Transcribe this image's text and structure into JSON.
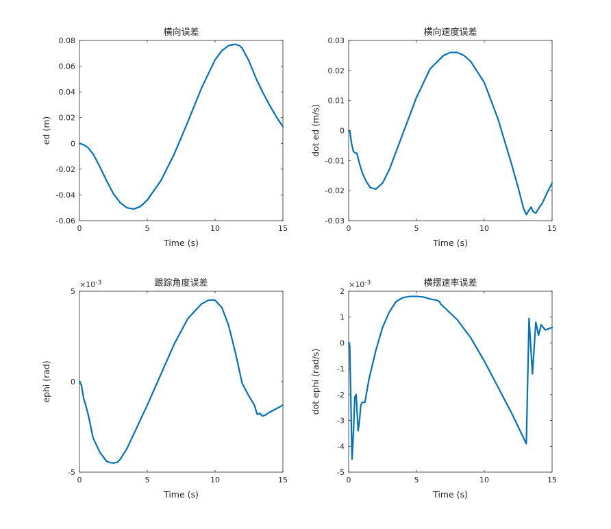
{
  "chart_data": [
    {
      "type": "line",
      "title": "横向误差",
      "xlabel": "Time (s)",
      "ylabel": "ed (m)",
      "xlim": [
        0,
        15
      ],
      "ylim": [
        -0.06,
        0.08
      ],
      "xticks": [
        0,
        5,
        10,
        15
      ],
      "xtick_labels": [
        "0",
        "5",
        "10",
        "15"
      ],
      "yticks": [
        -0.06,
        -0.04,
        -0.02,
        0,
        0.02,
        0.04,
        0.06,
        0.08
      ],
      "ytick_labels": [
        "-0.06",
        "-0.04",
        "-0.02",
        "0",
        "0.02",
        "0.04",
        "0.06",
        "0.08"
      ],
      "exponent": "",
      "grid": false,
      "color": "#0072BD",
      "x": [
        0,
        0.3,
        0.6,
        1.0,
        1.5,
        2.0,
        2.5,
        3.0,
        3.5,
        4.0,
        4.5,
        5.0,
        6.0,
        7.0,
        8.0,
        9.0,
        10.0,
        10.5,
        11.0,
        11.5,
        11.8,
        12.0,
        12.5,
        13.0,
        13.5,
        14.0,
        14.5,
        15.0
      ],
      "y": [
        0,
        -0.001,
        -0.003,
        -0.008,
        -0.018,
        -0.029,
        -0.039,
        -0.046,
        -0.05,
        -0.051,
        -0.049,
        -0.044,
        -0.029,
        -0.008,
        0.017,
        0.043,
        0.065,
        0.072,
        0.076,
        0.077,
        0.076,
        0.074,
        0.064,
        0.051,
        0.04,
        0.03,
        0.021,
        0.013
      ]
    },
    {
      "type": "line",
      "title": "横向速度误差",
      "xlabel": "Time (s)",
      "ylabel": "dot ed (m/s)",
      "xlim": [
        0,
        15
      ],
      "ylim": [
        -0.03,
        0.03
      ],
      "xticks": [
        0,
        5,
        10,
        15
      ],
      "xtick_labels": [
        "0",
        "5",
        "10",
        "15"
      ],
      "yticks": [
        -0.03,
        -0.02,
        -0.01,
        0,
        0.01,
        0.02,
        0.03
      ],
      "ytick_labels": [
        "-0.03",
        "-0.02",
        "-0.01",
        "0",
        "0.01",
        "0.02",
        "0.03"
      ],
      "exponent": "",
      "grid": false,
      "color": "#0072BD",
      "x": [
        0,
        0.1,
        0.2,
        0.35,
        0.5,
        0.6,
        0.8,
        1.0,
        1.3,
        1.6,
        2.0,
        2.5,
        3.0,
        4.0,
        5.0,
        6.0,
        7.0,
        7.5,
        8.0,
        8.5,
        9.0,
        10.0,
        11.0,
        12.0,
        12.5,
        12.9,
        13.1,
        13.3,
        13.45,
        13.6,
        13.8,
        14.0,
        14.3,
        14.6,
        15.0
      ],
      "y": [
        0,
        -0.0005,
        -0.004,
        -0.007,
        -0.0075,
        -0.0075,
        -0.011,
        -0.014,
        -0.017,
        -0.019,
        -0.0195,
        -0.0175,
        -0.013,
        -0.001,
        0.011,
        0.0205,
        0.025,
        0.026,
        0.026,
        0.025,
        0.023,
        0.016,
        0.004,
        -0.011,
        -0.019,
        -0.026,
        -0.028,
        -0.0265,
        -0.0255,
        -0.027,
        -0.0275,
        -0.026,
        -0.024,
        -0.021,
        -0.0175
      ]
    },
    {
      "type": "line",
      "title": "跟踪角度误差",
      "xlabel": "Time (s)",
      "ylabel": "ephi (rad)",
      "xlim": [
        0,
        15
      ],
      "ylim": [
        -0.005,
        0.005
      ],
      "xticks": [
        0,
        5,
        10,
        15
      ],
      "xtick_labels": [
        "0",
        "5",
        "10",
        "15"
      ],
      "yticks": [
        -0.005,
        0,
        0.005
      ],
      "ytick_labels": [
        "-5",
        "0",
        "5"
      ],
      "exponent": "-3",
      "grid": false,
      "color": "#0072BD",
      "x": [
        0,
        0.15,
        0.3,
        0.5,
        0.7,
        1.0,
        1.5,
        2.0,
        2.3,
        2.5,
        2.8,
        3.0,
        3.5,
        4.0,
        5.0,
        6.0,
        7.0,
        8.0,
        9.0,
        9.5,
        9.8,
        10.0,
        10.5,
        11.0,
        11.5,
        12.0,
        12.5,
        12.9,
        13.1,
        13.3,
        13.5,
        13.7,
        14.0,
        14.5,
        15.0
      ],
      "y": [
        0,
        -0.0002,
        -0.0009,
        -0.0014,
        -0.002,
        -0.0031,
        -0.0039,
        -0.0044,
        -0.00448,
        -0.0045,
        -0.00445,
        -0.0043,
        -0.0037,
        -0.0029,
        -0.0013,
        0.0004,
        0.0021,
        0.0035,
        0.0043,
        0.0045,
        0.00452,
        0.0045,
        0.0041,
        0.0031,
        0.0016,
        -0.0001,
        -0.0008,
        -0.0013,
        -0.0018,
        -0.00175,
        -0.0019,
        -0.00185,
        -0.0017,
        -0.0015,
        -0.0013
      ]
    },
    {
      "type": "line",
      "title": "横摆速率误差",
      "xlabel": "Time (s)",
      "ylabel": "dot ephi (rad/s)",
      "xlim": [
        0,
        15
      ],
      "ylim": [
        -0.005,
        0.002
      ],
      "xticks": [
        0,
        5,
        10,
        15
      ],
      "xtick_labels": [
        "0",
        "5",
        "10",
        "15"
      ],
      "yticks": [
        -0.005,
        -0.004,
        -0.003,
        -0.002,
        -0.001,
        0,
        0.001,
        0.002
      ],
      "ytick_labels": [
        "-5",
        "-4",
        "-3",
        "-2",
        "-1",
        "0",
        "1",
        "2"
      ],
      "exponent": "-3",
      "grid": false,
      "color": "#0072BD",
      "x": [
        0,
        0.08,
        0.25,
        0.35,
        0.45,
        0.55,
        0.7,
        0.8,
        0.9,
        1.0,
        1.2,
        1.5,
        2.0,
        2.5,
        3.0,
        3.5,
        4.0,
        4.5,
        5.0,
        5.5,
        6.0,
        6.5,
        6.7,
        6.8,
        7.0,
        8.0,
        9.0,
        10.0,
        11.0,
        12.0,
        13.1,
        13.3,
        13.55,
        13.8,
        14.0,
        14.2,
        14.5,
        15.0
      ],
      "y": [
        0,
        -0.0001,
        -0.0045,
        -0.0035,
        -0.0021,
        -0.002,
        -0.0034,
        -0.003,
        -0.0024,
        -0.0023,
        -0.0023,
        -0.0014,
        -0.0003,
        0.0006,
        0.0012,
        0.0016,
        0.00175,
        0.0018,
        0.0018,
        0.00178,
        0.0017,
        0.00165,
        0.0016,
        0.0015,
        0.0014,
        0.0009,
        0.0002,
        -0.0007,
        -0.0017,
        -0.0027,
        -0.0039,
        0.00095,
        -0.0012,
        0.0008,
        0.0003,
        0.0007,
        0.0005,
        0.0006
      ]
    }
  ]
}
